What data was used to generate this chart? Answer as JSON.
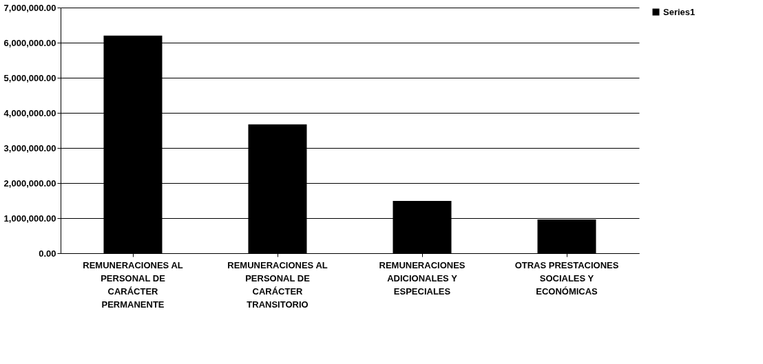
{
  "chart_data": {
    "type": "bar",
    "categories": [
      "REMUNERACIONES AL PERSONAL DE CARÁCTER PERMANENTE",
      "REMUNERACIONES AL PERSONAL DE CARÁCTER TRANSITORIO",
      "REMUNERACIONES ADICIONALES Y ESPECIALES",
      "OTRAS PRESTACIONES SOCIALES Y ECONÓMICAS"
    ],
    "series": [
      {
        "name": "Series1",
        "color": "#000000",
        "values": [
          6200000,
          3670000,
          1490000,
          960000
        ]
      }
    ],
    "ylim": [
      0,
      7000000
    ],
    "yticks": [
      {
        "value": 0,
        "label": "0.00"
      },
      {
        "value": 1000000,
        "label": "1,000,000.00"
      },
      {
        "value": 2000000,
        "label": "2,000,000.00"
      },
      {
        "value": 3000000,
        "label": "3,000,000.00"
      },
      {
        "value": 4000000,
        "label": "4,000,000.00"
      },
      {
        "value": 5000000,
        "label": "5,000,000.00"
      },
      {
        "value": 6000000,
        "label": "6,000,000.00"
      },
      {
        "value": 7000000,
        "label": "7,000,000.00"
      }
    ],
    "grid": "y",
    "legend": "right"
  }
}
